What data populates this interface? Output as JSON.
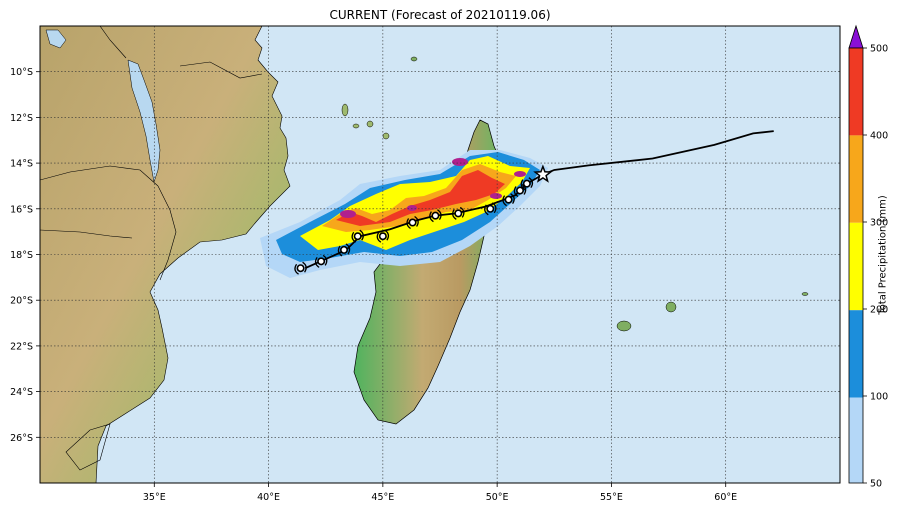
{
  "title": "CURRENT (Forecast of 20210119.06)",
  "colors": {
    "ocean": "#d1e6f5",
    "precip_50": "#b4d7f7",
    "precip_100": "#1c8edb",
    "precip_200": "#ffff00",
    "precip_300": "#f7a71b",
    "precip_400": "#ef3a24",
    "precip_over": "#8a0fd6",
    "track": "#000000"
  },
  "axes": {
    "lon_labels": [
      "35°E",
      "40°E",
      "45°E",
      "50°E",
      "55°E",
      "60°E"
    ],
    "lon_values": [
      35,
      40,
      45,
      50,
      55,
      60
    ],
    "lat_labels": [
      "10°S",
      "12°S",
      "14°S",
      "16°S",
      "18°S",
      "20°S",
      "22°S",
      "24°S",
      "26°S"
    ],
    "lat_values": [
      -10,
      -12,
      -14,
      -16,
      -18,
      -20,
      -22,
      -24,
      -26
    ],
    "lon_range": [
      30,
      65
    ],
    "lat_range": [
      -28,
      -8
    ],
    "grid": "dotted"
  },
  "colorbar": {
    "label": "Total Precipitation (mm)",
    "tick_labels": [
      "50",
      "100",
      "200",
      "300",
      "400",
      "500"
    ]
  },
  "track": {
    "points": [
      [
        62.1,
        -12.6
      ],
      [
        61.2,
        -12.7
      ],
      [
        59.5,
        -13.2
      ],
      [
        56.8,
        -13.8
      ],
      [
        54.0,
        -14.1
      ],
      [
        52.5,
        -14.3
      ],
      [
        52.0,
        -14.5
      ],
      [
        51.3,
        -14.9
      ],
      [
        50.8,
        -15.4
      ],
      [
        50.3,
        -15.6
      ],
      [
        49.5,
        -15.9
      ],
      [
        48.2,
        -16.2
      ],
      [
        47.3,
        -16.3
      ],
      [
        46.5,
        -16.5
      ],
      [
        45.3,
        -16.9
      ],
      [
        44.0,
        -17.2
      ],
      [
        43.4,
        -17.8
      ],
      [
        42.5,
        -18.2
      ],
      [
        41.6,
        -18.6
      ]
    ],
    "current_position": [
      52.0,
      -14.5
    ],
    "markers": [
      [
        51.3,
        -14.9
      ],
      [
        51.0,
        -15.2
      ],
      [
        50.5,
        -15.6
      ],
      [
        49.7,
        -16.0
      ],
      [
        48.3,
        -16.2
      ],
      [
        47.3,
        -16.3
      ],
      [
        46.3,
        -16.6
      ],
      [
        45.0,
        -17.2
      ],
      [
        43.9,
        -17.2
      ],
      [
        43.3,
        -17.8
      ],
      [
        42.3,
        -18.3
      ],
      [
        41.4,
        -18.6
      ]
    ]
  }
}
